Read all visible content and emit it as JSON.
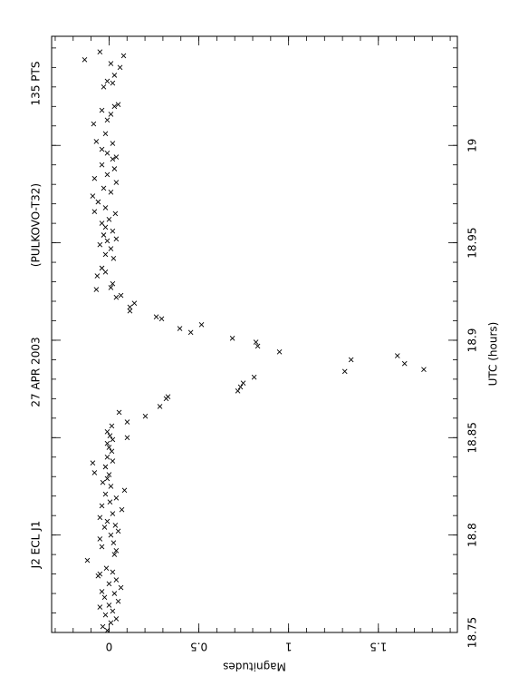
{
  "chart_data": {
    "type": "scatter",
    "title": [
      "J2 ECL J1",
      "27 APR 2003",
      "(PULKOVO-T32)",
      "135 PTS"
    ],
    "x_label": "UTC (hours)",
    "y_label": "Magnitudes",
    "xlim": [
      18.75,
      19.056
    ],
    "ylim": [
      -0.32,
      1.94
    ],
    "y_inverted": true,
    "xticks": [
      18.75,
      18.8,
      18.85,
      18.9,
      18.95,
      19
    ],
    "yticks": [
      0,
      0.5,
      1,
      1.5
    ],
    "marker": "x",
    "color": "#000000",
    "x": [
      18.751,
      18.753,
      18.755,
      18.757,
      18.759,
      18.761,
      18.763,
      18.764,
      18.766,
      18.768,
      18.77,
      18.771,
      18.773,
      18.775,
      18.777,
      18.779,
      18.78,
      18.781,
      18.783,
      18.787,
      18.79,
      18.792,
      18.794,
      18.796,
      18.798,
      18.8,
      18.802,
      18.804,
      18.805,
      18.807,
      18.809,
      18.811,
      18.813,
      18.815,
      18.817,
      18.819,
      18.821,
      18.823,
      18.825,
      18.827,
      18.829,
      18.831,
      18.832,
      18.835,
      18.837,
      18.838,
      18.84,
      18.843,
      18.845,
      18.847,
      18.849,
      18.85,
      18.851,
      18.853,
      18.856,
      18.858,
      18.861,
      18.863,
      18.866,
      18.87,
      18.871,
      18.874,
      18.876,
      18.878,
      18.881,
      18.884,
      18.885,
      18.888,
      18.89,
      18.892,
      18.894,
      18.897,
      18.899,
      18.901,
      18.904,
      18.906,
      18.908,
      18.911,
      18.912,
      18.915,
      18.917,
      18.919,
      18.922,
      18.923,
      18.926,
      18.927,
      18.929,
      18.933,
      18.935,
      18.937,
      18.942,
      18.944,
      18.947,
      18.949,
      18.951,
      18.952,
      18.954,
      18.956,
      18.958,
      18.96,
      18.962,
      18.965,
      18.966,
      18.968,
      18.971,
      18.974,
      18.976,
      18.978,
      18.981,
      18.983,
      18.985,
      18.988,
      18.99,
      18.993,
      18.994,
      18.996,
      18.998,
      19.001,
      19.002,
      19.006,
      19.011,
      19.013,
      19.016,
      19.018,
      19.02,
      19.021,
      19.03,
      19.032,
      19.033,
      19.036,
      19.04,
      19.042,
      19.044,
      19.046,
      19.048
    ],
    "values": [
      -0.01,
      -0.035,
      0.01,
      0.04,
      -0.02,
      0.02,
      -0.051,
      0.0,
      0.051,
      -0.025,
      0.03,
      -0.04,
      0.066,
      0.0,
      0.04,
      -0.061,
      -0.051,
      0.02,
      -0.015,
      -0.121,
      0.03,
      0.04,
      -0.04,
      0.025,
      -0.051,
      0.01,
      0.051,
      -0.025,
      0.035,
      -0.01,
      -0.051,
      0.02,
      0.071,
      -0.04,
      0.005,
      0.04,
      -0.02,
      0.086,
      0.01,
      -0.035,
      -0.01,
      0.0,
      -0.081,
      -0.02,
      -0.091,
      0.02,
      -0.01,
      0.015,
      0.0,
      -0.01,
      0.02,
      0.101,
      0.005,
      -0.01,
      0.015,
      0.101,
      0.202,
      0.056,
      0.283,
      0.318,
      0.328,
      0.717,
      0.732,
      0.747,
      0.808,
      1.313,
      1.753,
      1.646,
      1.348,
      1.606,
      0.949,
      0.828,
      0.818,
      0.687,
      0.455,
      0.394,
      0.515,
      0.293,
      0.263,
      0.116,
      0.116,
      0.141,
      0.04,
      0.066,
      -0.071,
      0.01,
      0.02,
      -0.066,
      -0.02,
      -0.04,
      0.025,
      -0.02,
      0.01,
      -0.051,
      -0.01,
      0.04,
      -0.03,
      0.02,
      -0.02,
      -0.04,
      0.0,
      0.035,
      -0.081,
      -0.02,
      -0.061,
      -0.091,
      0.01,
      -0.03,
      0.04,
      -0.081,
      -0.01,
      0.03,
      -0.04,
      0.02,
      0.04,
      -0.01,
      -0.04,
      0.02,
      -0.071,
      -0.02,
      -0.086,
      -0.01,
      0.01,
      -0.04,
      0.03,
      0.051,
      -0.03,
      0.02,
      -0.01,
      0.03,
      0.061,
      0.01,
      -0.136,
      0.081,
      -0.051
    ]
  }
}
